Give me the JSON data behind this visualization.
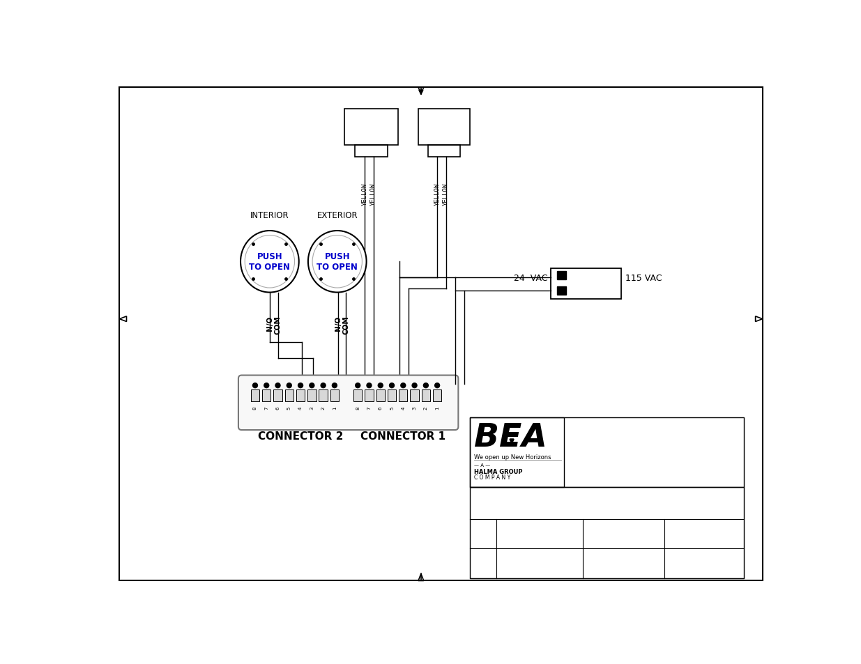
{
  "bg_color": "#ffffff",
  "line_color": "#000000",
  "blue_color": "#0000CC",
  "gray_color": "#aaaaaa",
  "interior_label": "INTERIOR",
  "exterior_label": "EXTERIOR",
  "push_to_open": "PUSH\nTO OPEN",
  "connector1_label": "CONNECTOR 1",
  "connector2_label": "CONNECTOR 2",
  "vac_24_label": "24  VAC",
  "vac_115_label": "115 VAC",
  "com_label": "COM",
  "no_label": "N/O",
  "bea_text": "BEA",
  "tagline": "We open up New Horizons",
  "halma1": "HALMA GROUP",
  "halma2": "C O M P A N Y"
}
